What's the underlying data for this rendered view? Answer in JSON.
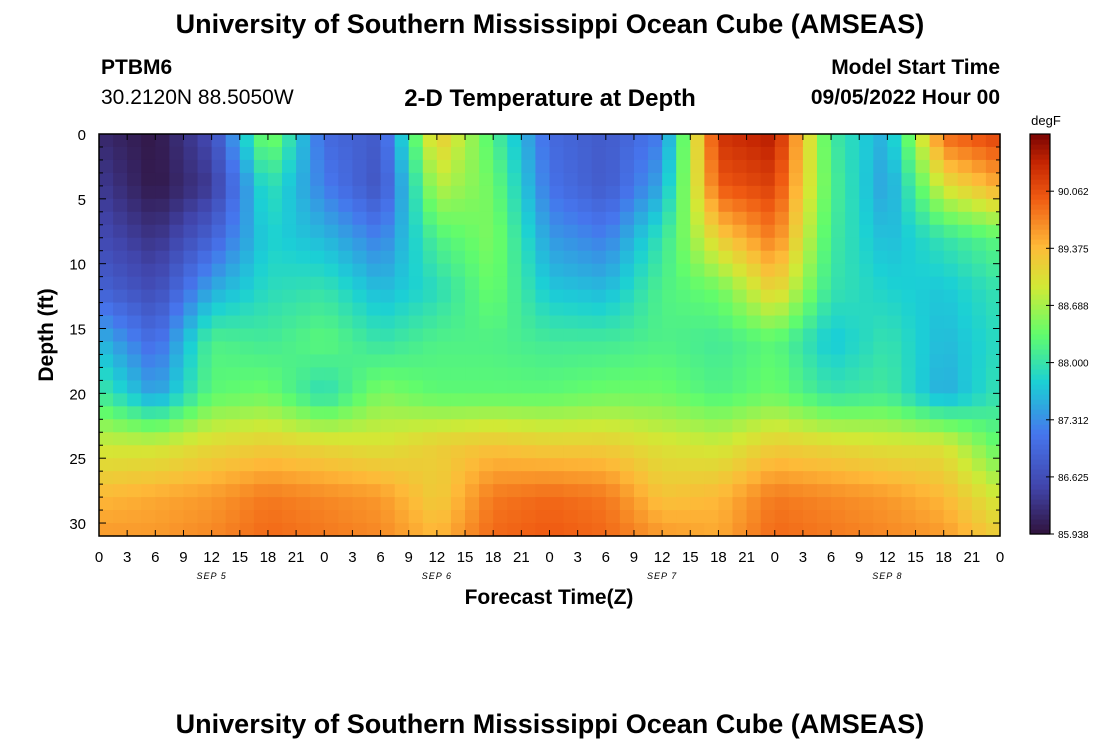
{
  "header": {
    "title": "University of Southern Mississippi Ocean Cube (AMSEAS)",
    "station_id": "PTBM6",
    "station_coords": "30.2120N  88.5050W",
    "plot_title": "2-D Temperature at Depth",
    "model_start_label": "Model Start Time",
    "model_start_value": "09/05/2022 Hour 00"
  },
  "footer": {
    "title_repeat": "University of Southern Mississippi Ocean Cube (AMSEAS)"
  },
  "chart_data": {
    "type": "heatmap",
    "xlabel": "Forecast Time(Z)",
    "ylabel": "Depth (ft)",
    "x_range_hours": [
      0,
      96
    ],
    "y_range_ft": [
      0,
      31
    ],
    "y_inverted": true,
    "x_ticks": [
      "0",
      "3",
      "6",
      "9",
      "12",
      "15",
      "18",
      "21",
      "0",
      "3",
      "6",
      "9",
      "12",
      "15",
      "18",
      "21",
      "0",
      "3",
      "6",
      "9",
      "12",
      "15",
      "18",
      "21",
      "0",
      "3",
      "6",
      "9",
      "12",
      "15",
      "18",
      "21",
      "0"
    ],
    "y_ticks": [
      "0",
      "5",
      "10",
      "15",
      "20",
      "25",
      "30"
    ],
    "date_labels": [
      {
        "hour": 12,
        "label": "SEP 5"
      },
      {
        "hour": 36,
        "label": "SEP 6"
      },
      {
        "hour": 60,
        "label": "SEP 7"
      },
      {
        "hour": 84,
        "label": "SEP 8"
      }
    ],
    "colorbar": {
      "unit": "degF",
      "min": 85.938,
      "max": 90.75,
      "tick_labels": [
        "90.062",
        "89.375",
        "88.688",
        "88.000",
        "87.312",
        "86.625",
        "85.938"
      ],
      "tick_values": [
        90.062,
        89.375,
        88.688,
        88.0,
        87.312,
        86.625,
        85.938
      ]
    },
    "grid": {
      "hours": [
        0,
        6,
        12,
        18,
        24,
        30,
        36,
        42,
        48,
        54,
        60,
        66,
        72,
        78,
        84,
        90,
        96
      ],
      "depths": [
        0,
        4,
        8,
        12,
        16,
        20,
        24,
        28,
        31
      ],
      "temperature_degF": [
        [
          86.2,
          86.0,
          86.6,
          88.6,
          87.0,
          86.8,
          89.3,
          88.2,
          87.0,
          86.8,
          87.2,
          90.3,
          90.5,
          88.1,
          87.5,
          89.9,
          90.2
        ],
        [
          86.4,
          86.0,
          86.4,
          88.0,
          87.2,
          86.7,
          88.8,
          88.4,
          87.1,
          86.8,
          87.5,
          90.0,
          90.2,
          88.2,
          87.4,
          89.0,
          89.5
        ],
        [
          86.6,
          86.3,
          86.9,
          87.8,
          87.6,
          87.2,
          88.2,
          88.5,
          87.4,
          87.2,
          88.0,
          89.2,
          89.8,
          88.1,
          87.6,
          88.0,
          88.3
        ],
        [
          86.9,
          86.6,
          87.5,
          87.9,
          88.0,
          87.6,
          87.9,
          88.4,
          87.7,
          87.6,
          88.2,
          88.4,
          89.2,
          88.0,
          87.8,
          87.7,
          88.0
        ],
        [
          87.6,
          87.0,
          88.2,
          88.1,
          88.3,
          88.0,
          88.2,
          88.2,
          88.1,
          88.1,
          88.2,
          88.1,
          88.3,
          87.7,
          88.0,
          87.6,
          87.9
        ],
        [
          88.1,
          87.4,
          88.3,
          88.4,
          87.9,
          88.5,
          88.3,
          88.3,
          88.3,
          88.4,
          88.4,
          88.2,
          88.4,
          88.0,
          88.1,
          87.5,
          88.0
        ],
        [
          88.9,
          88.9,
          89.1,
          89.2,
          89.1,
          89.0,
          89.2,
          89.3,
          89.2,
          89.2,
          89.0,
          88.9,
          89.2,
          89.1,
          89.0,
          89.0,
          88.3
        ],
        [
          89.4,
          89.5,
          89.6,
          89.8,
          89.7,
          89.6,
          89.2,
          89.8,
          89.9,
          89.8,
          89.3,
          89.4,
          89.8,
          89.7,
          89.6,
          89.4,
          88.9
        ],
        [
          89.6,
          89.6,
          89.7,
          89.9,
          89.8,
          89.7,
          89.4,
          89.9,
          90.0,
          89.9,
          89.6,
          89.5,
          89.9,
          89.8,
          89.7,
          89.6,
          89.2
        ]
      ]
    }
  }
}
